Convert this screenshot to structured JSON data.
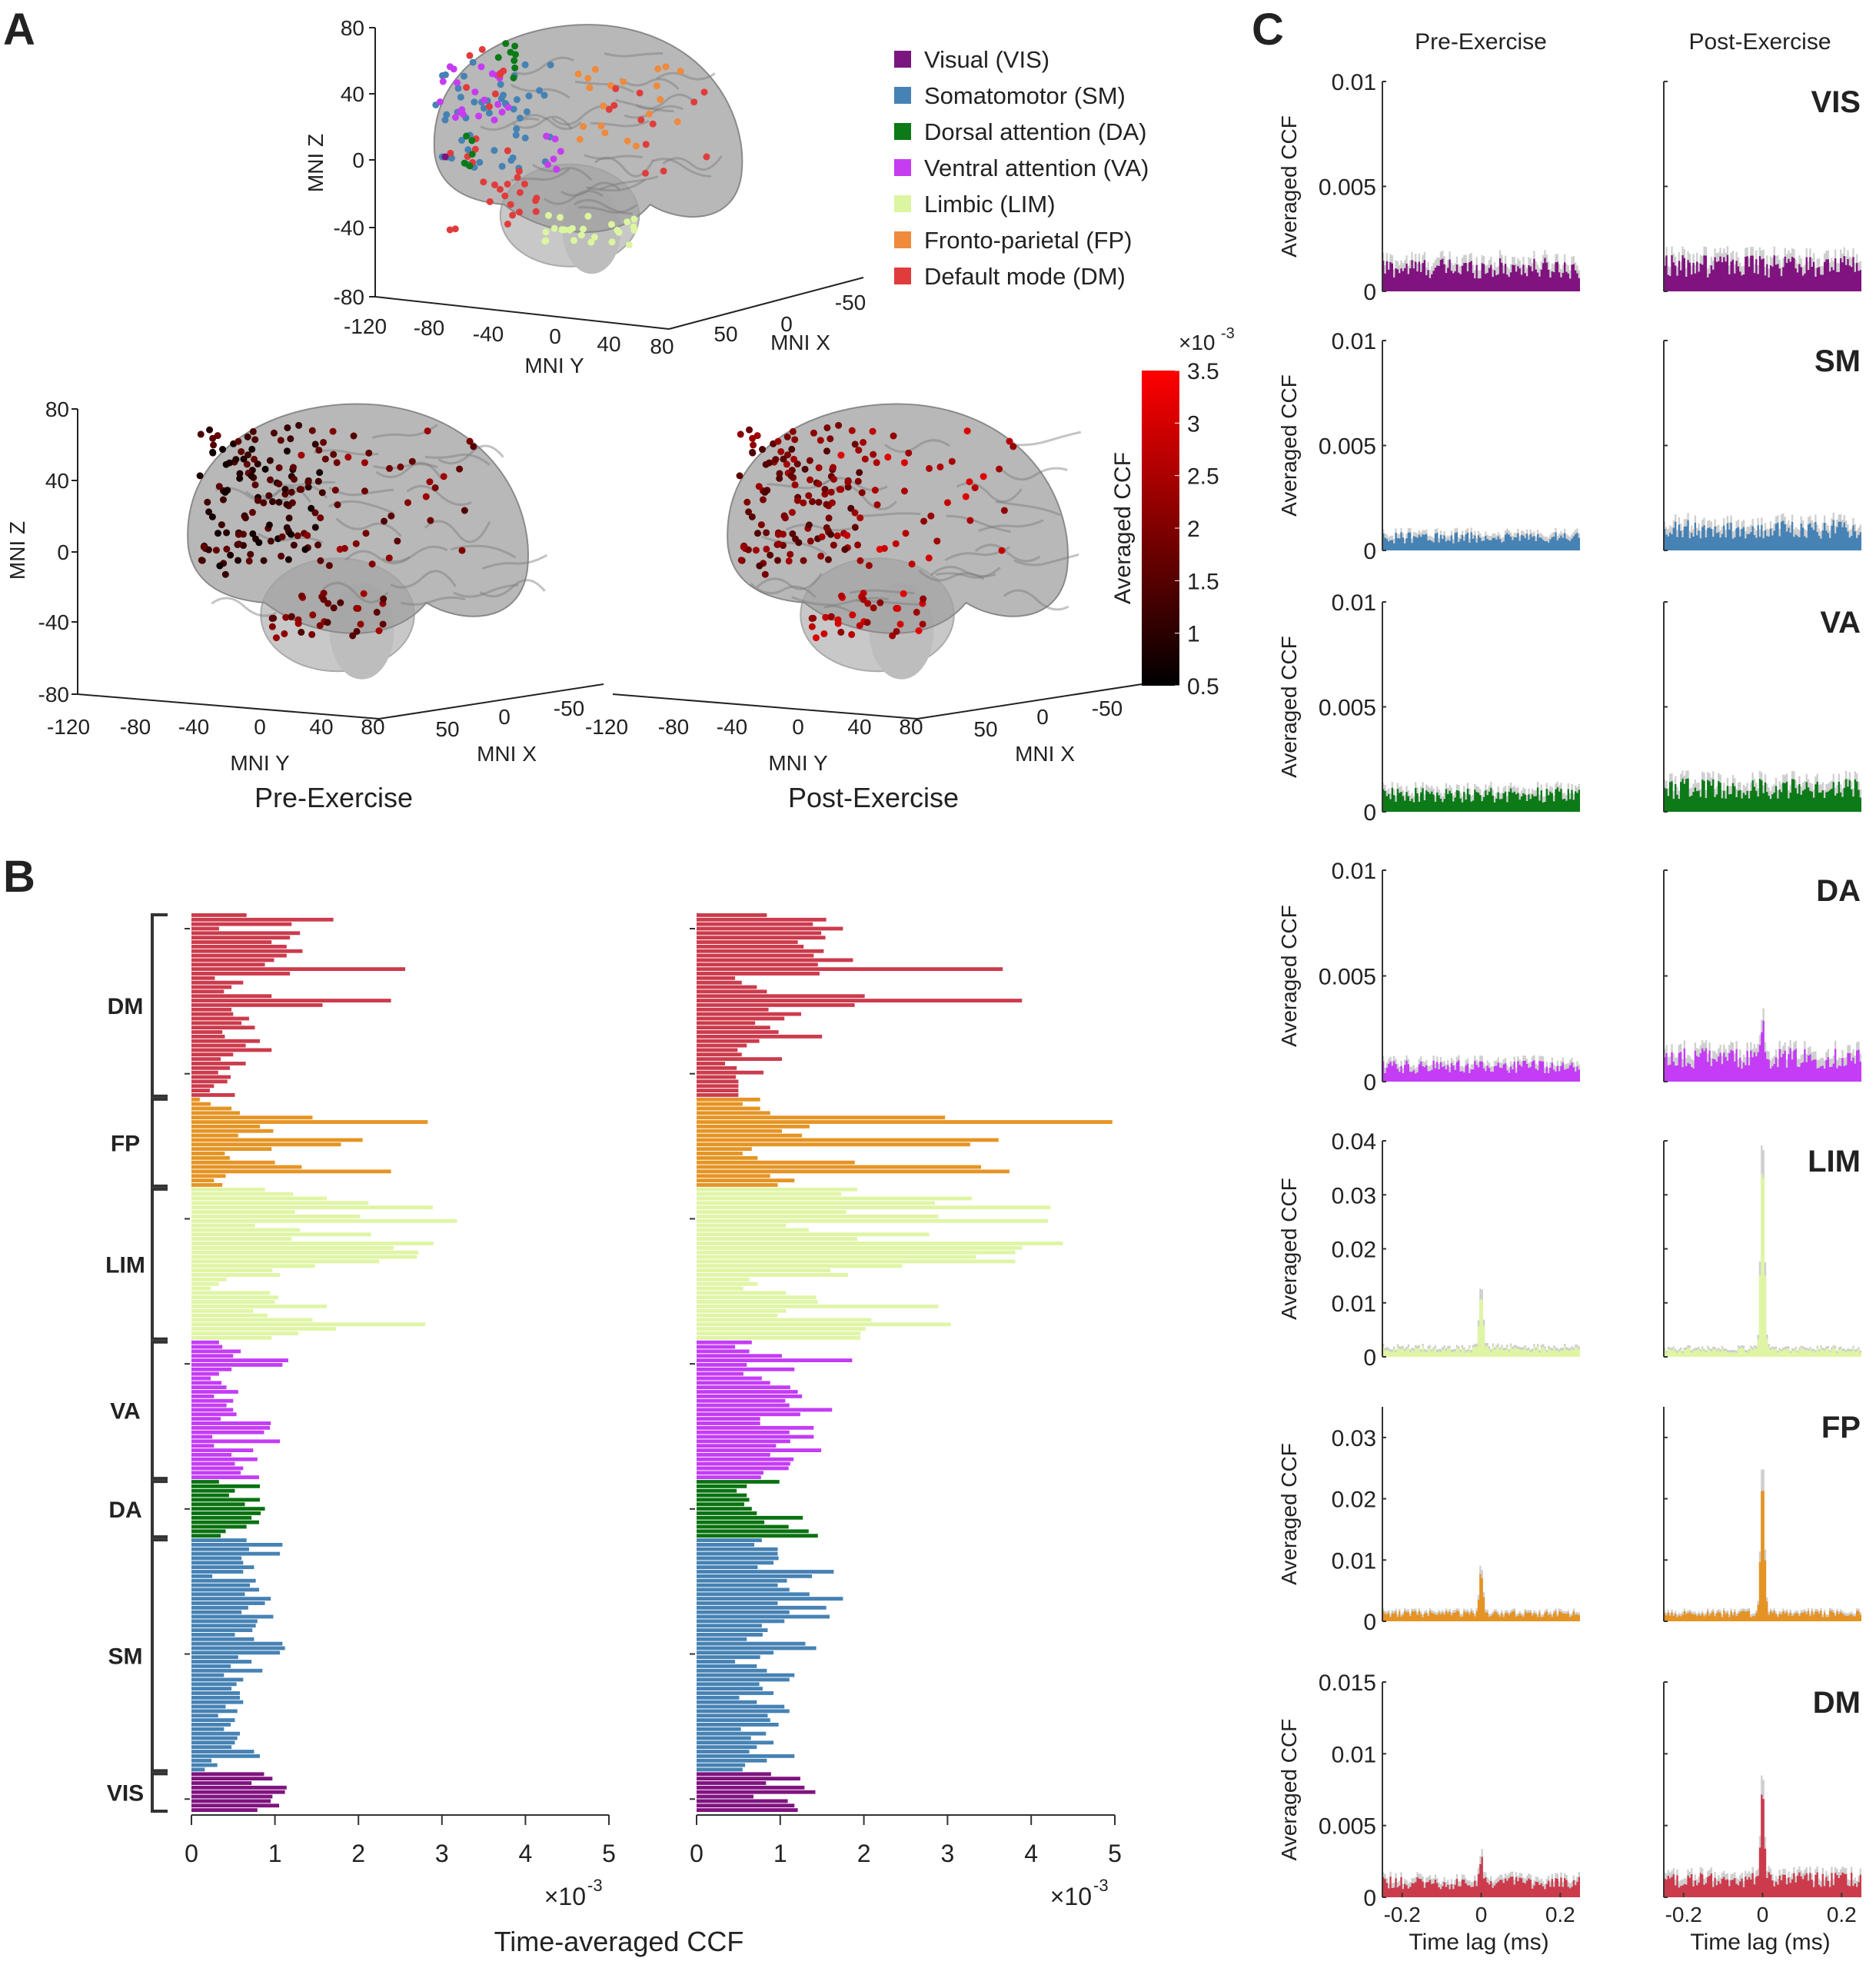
{
  "panel_labels": {
    "a": "A",
    "b": "B",
    "c": "C"
  },
  "panel_a": {
    "legend": [
      {
        "label": "Visual (VIS)",
        "color": "#7b1580"
      },
      {
        "label": "Somatomotor (SM)",
        "color": "#4682b4"
      },
      {
        "label": "Dorsal attention (DA)",
        "color": "#0b7a17"
      },
      {
        "label": "Ventral attention (VA)",
        "color": "#c63cf0"
      },
      {
        "label": "Limbic (LIM)",
        "color": "#dcf5a0"
      },
      {
        "label": "Fronto-parietal (FP)",
        "color": "#f08a3c"
      },
      {
        "label": "Default mode (DM)",
        "color": "#e03c3c"
      }
    ],
    "axes": {
      "z_label": "MNI Z",
      "y_label": "MNI Y",
      "x_label": "MNI X",
      "z_ticks": [
        "80",
        "40",
        "0",
        "-40",
        "-80"
      ],
      "y_ticks": [
        "-120",
        "-80",
        "-40",
        "0",
        "40",
        "80"
      ],
      "x_ticks": [
        "50",
        "0",
        "-50"
      ]
    },
    "bottom_titles": [
      "Pre-Exercise",
      "Post-Exercise"
    ],
    "colorbar": {
      "label": "Averaged CCF",
      "multiplier": "×10",
      "exponent": "-3",
      "ticks": [
        "3.5",
        "3",
        "2.5",
        "2",
        "1.5",
        "1",
        "0.5"
      ],
      "range": [
        0.5,
        3.5
      ],
      "colors": [
        "#000000",
        "#ff0000"
      ]
    }
  },
  "chart_data": [
    {
      "type": "bar",
      "orientation": "horizontal",
      "xlabel": "Time-averaged CCF",
      "x_multiplier": "×10",
      "x_exponent": "-3",
      "xlim": [
        0,
        5
      ],
      "x_ticks": [
        "0",
        "1",
        "2",
        "3",
        "4",
        "5"
      ],
      "groups": [
        {
          "name": "DM",
          "color": "#cc3b4c",
          "values": [
            0.66,
            1.7,
            1.2,
            0.33,
            1.3,
            1.18,
            0.96,
            1.14,
            1.33,
            1.14,
            0.99,
            0.88,
            2.56,
            1.18,
            0.28,
            0.62,
            0.48,
            0.39,
            0.96,
            2.39,
            1.57,
            0.48,
            0.5,
            0.69,
            0.6,
            0.76,
            0.37,
            0.4,
            0.82,
            0.65,
            0.96,
            0.5,
            0.35,
            0.65,
            0.46,
            0.32,
            0.47,
            0.43,
            0.27,
            0.22,
            0.52
          ]
        },
        {
          "name": "FP",
          "color": "#e59424",
          "values": [
            0.1,
            0.23,
            0.48,
            0.58,
            1.45,
            2.83,
            0.82,
            0.98,
            0.56,
            2.05,
            1.79,
            0.96,
            0.4,
            0.46,
            1.0,
            1.32,
            2.39,
            0.41,
            0.27,
            0.37
          ]
        },
        {
          "name": "LIM",
          "color": "#dff5a5",
          "values": [
            0.88,
            1.22,
            1.62,
            2.12,
            2.89,
            1.24,
            2.02,
            3.18,
            0.76,
            1.3,
            2.15,
            1.2,
            2.9,
            2.42,
            2.72,
            2.7,
            2.25,
            1.48,
            0.97,
            1.06,
            0.42,
            0.33,
            0.23,
            0.94,
            1.04,
            1.0,
            1.62,
            0.74,
            0.91,
            1.45,
            2.8,
            1.73,
            1.28,
            0.96
          ]
        },
        {
          "name": "VA",
          "color": "#c43cf5",
          "values": [
            0.33,
            0.37,
            0.59,
            0.5,
            1.16,
            1.09,
            0.48,
            0.33,
            0.23,
            0.36,
            0.42,
            0.56,
            0.27,
            0.5,
            0.42,
            0.5,
            0.54,
            0.35,
            0.95,
            0.94,
            0.87,
            0.25,
            1.06,
            0.27,
            0.74,
            0.48,
            0.79,
            0.52,
            0.62,
            0.59,
            0.81
          ]
        },
        {
          "name": "DA",
          "color": "#087210",
          "values": [
            0.33,
            0.82,
            0.52,
            0.45,
            0.82,
            0.64,
            0.88,
            0.83,
            0.72,
            0.81,
            0.66,
            0.41,
            0.35
          ]
        },
        {
          "name": "SM",
          "color": "#4682b4",
          "values": [
            0.66,
            1.09,
            0.69,
            1.06,
            0.6,
            0.62,
            0.75,
            0.62,
            0.25,
            0.77,
            0.7,
            0.81,
            0.64,
            0.95,
            0.88,
            0.68,
            0.6,
            0.98,
            0.79,
            0.77,
            0.73,
            0.52,
            0.75,
            1.09,
            1.12,
            1.06,
            0.56,
            0.72,
            0.47,
            0.85,
            0.39,
            0.62,
            0.54,
            0.48,
            0.58,
            0.58,
            0.62,
            0.41,
            0.55,
            0.32,
            0.52,
            0.47,
            0.39,
            0.58,
            0.55,
            0.52,
            0.48,
            0.75,
            0.82,
            0.24,
            0.31,
            0.16
          ]
        },
        {
          "name": "VIS",
          "color": "#80137f",
          "values": [
            0.87,
            0.97,
            0.72,
            1.14,
            1.12,
            0.97,
            0.95,
            1.05,
            0.79
          ]
        }
      ]
    },
    {
      "type": "bar",
      "orientation": "horizontal",
      "x_multiplier": "×10",
      "x_exponent": "-3",
      "xlim": [
        0,
        5
      ],
      "x_ticks": [
        "0",
        "1",
        "2",
        "3",
        "4",
        "5"
      ],
      "groups": [
        {
          "name": "DM",
          "color": "#cc3b4c",
          "values": [
            0.84,
            1.55,
            1.39,
            1.75,
            1.49,
            1.54,
            1.21,
            1.28,
            1.52,
            1.4,
            1.87,
            1.45,
            3.66,
            1.47,
            0.46,
            0.54,
            0.72,
            0.84,
            2.01,
            3.89,
            1.89,
            0.86,
            1.25,
            1.05,
            0.7,
            0.88,
            0.98,
            1.5,
            0.75,
            0.6,
            0.49,
            0.54,
            1.02,
            0.34,
            0.48,
            0.8,
            0.47,
            0.5,
            0.5,
            0.5,
            0.5
          ]
        },
        {
          "name": "FP",
          "color": "#e59424",
          "values": [
            0.76,
            0.55,
            0.76,
            0.88,
            2.97,
            4.97,
            1.35,
            1.02,
            1.26,
            3.61,
            3.27,
            0.66,
            0.55,
            0.73,
            1.89,
            3.4,
            3.74,
            0.88,
            1.17,
            0.97
          ]
        },
        {
          "name": "LIM",
          "color": "#dff5a5",
          "values": [
            1.92,
            1.73,
            3.29,
            2.85,
            4.23,
            1.79,
            2.89,
            4.2,
            1.07,
            1.34,
            2.78,
            1.92,
            4.38,
            3.89,
            3.81,
            3.34,
            3.81,
            2.46,
            1.6,
            1.81,
            0.63,
            0.73,
            0.56,
            1.07,
            1.43,
            1.45,
            2.89,
            1.07,
            0.97,
            2.09,
            3.04,
            2.02,
            1.96,
            1.96
          ]
        },
        {
          "name": "VA",
          "color": "#c43cf5",
          "values": [
            0.66,
            0.46,
            0.63,
            1.02,
            1.86,
            0.6,
            1.17,
            0.56,
            0.78,
            0.88,
            1.12,
            1.21,
            1.26,
            1.06,
            1.11,
            1.62,
            1.24,
            0.76,
            0.76,
            1.4,
            1.11,
            1.4,
            1.12,
            0.95,
            1.49,
            0.88,
            1.16,
            1.12,
            1.1,
            0.8,
            0.77
          ]
        },
        {
          "name": "DA",
          "color": "#087210",
          "values": [
            0.99,
            0.6,
            0.48,
            0.6,
            0.63,
            0.57,
            0.66,
            0.72,
            1.27,
            0.81,
            1.1,
            1.34,
            1.45
          ]
        },
        {
          "name": "SM",
          "color": "#4682b4",
          "values": [
            0.78,
            0.69,
            0.97,
            0.97,
            0.98,
            0.92,
            0.73,
            1.64,
            1.38,
            1.08,
            0.97,
            1.11,
            1.35,
            1.75,
            0.97,
            1.55,
            1.11,
            1.59,
            1.05,
            0.78,
            0.85,
            0.79,
            0.6,
            1.3,
            1.43,
            0.92,
            0.76,
            0.46,
            0.72,
            0.84,
            1.17,
            1.11,
            0.75,
            0.79,
            0.92,
            0.51,
            0.72,
            1.05,
            1.11,
            0.85,
            0.88,
            0.98,
            0.53,
            0.83,
            0.65,
            0.92,
            0.72,
            0.63,
            1.17,
            0.84,
            0.58,
            0.55
          ]
        },
        {
          "name": "VIS",
          "color": "#80137f",
          "values": [
            0.89,
            1.24,
            0.83,
            1.29,
            1.42,
            0.68,
            1.09,
            1.17,
            1.21
          ]
        }
      ]
    },
    {
      "type": "bar",
      "columns": [
        "Pre-Exercise",
        "Post-Exercise"
      ],
      "ylabel": "Averaged CCF",
      "xlabel": "Time lag (ms)",
      "xlim": [
        -0.25,
        0.25
      ],
      "x_ticks": [
        "-0.2",
        "0",
        "0.2"
      ],
      "rows": [
        {
          "network": "VIS",
          "color": "#80137f",
          "ylim": [
            0,
            0.01
          ],
          "y_ticks": [
            "0.01",
            "0.005",
            "0"
          ],
          "pre": {
            "baseline": 0.0011,
            "peak": 0.0011
          },
          "post": {
            "baseline": 0.0012,
            "peak": 0.0012
          }
        },
        {
          "network": "SM",
          "color": "#4682b4",
          "ylim": [
            0,
            0.01
          ],
          "y_ticks": [
            "0.01",
            "0.005",
            "0"
          ],
          "pre": {
            "baseline": 0.0006,
            "peak": 0.0006
          },
          "post": {
            "baseline": 0.001,
            "peak": 0.001
          }
        },
        {
          "network": "VA",
          "color": "#0b7a17",
          "ylim": [
            0,
            0.01
          ],
          "y_ticks": [
            "0.01",
            "0.005",
            "0"
          ],
          "pre": {
            "baseline": 0.0008,
            "peak": 0.0008
          },
          "post": {
            "baseline": 0.0011,
            "peak": 0.0011
          }
        },
        {
          "network": "DA",
          "color": "#c43cf5",
          "ylim": [
            0,
            0.01
          ],
          "y_ticks": [
            "0.01",
            "0.005",
            "0"
          ],
          "pre": {
            "baseline": 0.0007,
            "peak": 0.0009
          },
          "post": {
            "baseline": 0.0011,
            "peak": 0.0026
          }
        },
        {
          "network": "LIM",
          "color": "#dff5a5",
          "ylim": [
            0,
            0.04
          ],
          "y_ticks": [
            "0.04",
            "0.03",
            "0.02",
            "0.01",
            "0"
          ],
          "pre": {
            "baseline": 0.0014,
            "peak": 0.012
          },
          "post": {
            "baseline": 0.0012,
            "peak": 0.037
          }
        },
        {
          "network": "FP",
          "color": "#e59424",
          "ylim": [
            0,
            0.035
          ],
          "y_ticks": [
            "0.03",
            "0.02",
            "0.01",
            "0"
          ],
          "pre": {
            "baseline": 0.0012,
            "peak": 0.008
          },
          "post": {
            "baseline": 0.0012,
            "peak": 0.024
          }
        },
        {
          "network": "DM",
          "color": "#cc3b4c",
          "ylim": [
            0,
            0.015
          ],
          "y_ticks": [
            "0.015",
            "0.01",
            "0.005",
            "0"
          ],
          "pre": {
            "baseline": 0.001,
            "peak": 0.0026
          },
          "post": {
            "baseline": 0.0012,
            "peak": 0.008
          }
        }
      ]
    }
  ]
}
